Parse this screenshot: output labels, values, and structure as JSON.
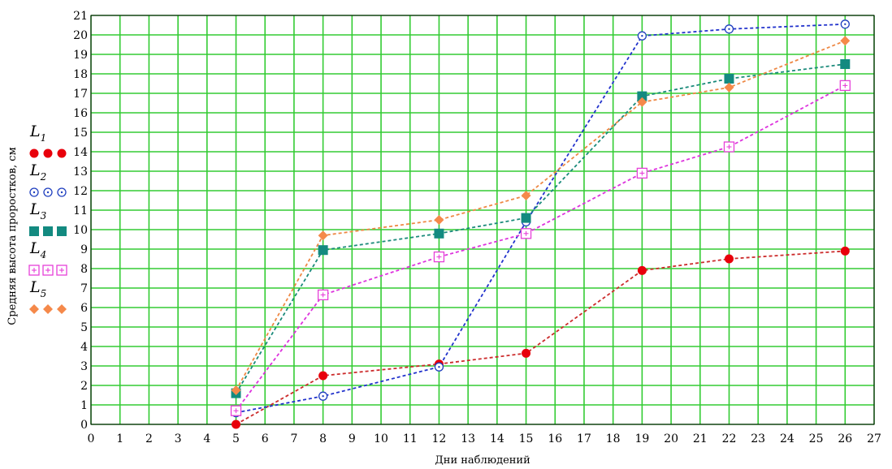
{
  "chart_data": {
    "type": "line",
    "xlabel": "Дни наблюдений",
    "ylabel": "Средняя высота проростков, см",
    "xlim": [
      0,
      27
    ],
    "ylim": [
      0,
      21
    ],
    "x_ticks": [
      0,
      1,
      2,
      3,
      4,
      5,
      6,
      7,
      8,
      9,
      10,
      11,
      12,
      13,
      14,
      15,
      16,
      17,
      18,
      19,
      20,
      21,
      22,
      23,
      24,
      25,
      26,
      27
    ],
    "y_ticks": [
      0,
      1,
      2,
      3,
      4,
      5,
      6,
      7,
      8,
      9,
      10,
      11,
      12,
      13,
      14,
      15,
      16,
      17,
      18,
      19,
      20,
      21
    ],
    "grid": true,
    "grid_color": "#33cc33",
    "legend_position": "left",
    "x": [
      5,
      8,
      12,
      15,
      19,
      22,
      26
    ],
    "series": [
      {
        "name": "L",
        "subscript": "1",
        "marker": "filled-circle",
        "color": "#e8000b",
        "line_color": "#cc2b2b",
        "values": [
          0.0,
          2.5,
          3.1,
          3.65,
          7.9,
          8.5,
          8.9
        ]
      },
      {
        "name": "L",
        "subscript": "2",
        "marker": "open-circle-dot",
        "color": "#1f3fbf",
        "line_color": "#2233cc",
        "values": [
          0.6,
          1.45,
          2.95,
          10.4,
          19.95,
          20.3,
          20.55
        ]
      },
      {
        "name": "L",
        "subscript": "3",
        "marker": "filled-square",
        "color": "#138a80",
        "line_color": "#1a8a7a",
        "values": [
          1.6,
          8.95,
          9.8,
          10.6,
          16.85,
          17.75,
          18.5
        ]
      },
      {
        "name": "L",
        "subscript": "4",
        "marker": "open-square-plus",
        "color": "#e640d8",
        "line_color": "#dd33dd",
        "values": [
          0.7,
          6.65,
          8.6,
          9.8,
          12.9,
          14.25,
          17.4
        ]
      },
      {
        "name": "L",
        "subscript": "5",
        "marker": "filled-diamond",
        "color": "#f5894a",
        "line_color": "#ee8844",
        "values": [
          1.75,
          9.7,
          10.5,
          11.75,
          16.55,
          17.3,
          19.7
        ]
      }
    ]
  }
}
